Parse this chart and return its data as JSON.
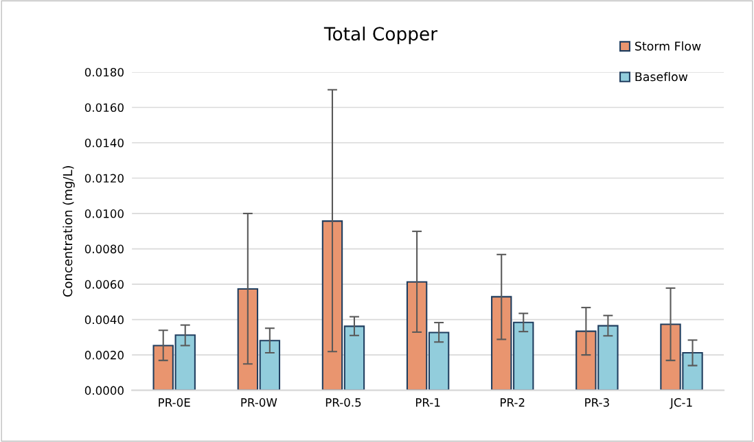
{
  "chart_data": {
    "type": "bar",
    "title": "Total Copper",
    "ylabel": "Concentration (mg/L)",
    "categories": [
      "PR-0E",
      "PR-0W",
      "PR-0.5",
      "PR-1",
      "PR-2",
      "PR-3",
      "JC-1"
    ],
    "series": [
      {
        "name": "Storm Flow",
        "color": "#e9956f",
        "values": [
          0.00253,
          0.00573,
          0.00957,
          0.00613,
          0.00529,
          0.00334,
          0.00373
        ],
        "errors": [
          [
            0.00169,
            0.00339
          ],
          [
            0.00149,
            0.01
          ],
          [
            0.00219,
            0.017
          ],
          [
            0.00329,
            0.00899
          ],
          [
            0.00288,
            0.00768
          ],
          [
            0.002,
            0.00468
          ],
          [
            0.00169,
            0.00578
          ]
        ]
      },
      {
        "name": "Baseflow",
        "color": "#92cddc",
        "values": [
          0.00312,
          0.00281,
          0.00362,
          0.00327,
          0.00384,
          0.00365,
          0.00212
        ],
        "errors": [
          [
            0.00253,
            0.00369
          ],
          [
            0.00212,
            0.00351
          ],
          [
            0.0031,
            0.00416
          ],
          [
            0.00273,
            0.00383
          ],
          [
            0.00332,
            0.00435
          ],
          [
            0.00308,
            0.00423
          ],
          [
            0.0014,
            0.00284
          ]
        ]
      }
    ],
    "ylim": [
      0,
      0.018
    ],
    "yticks": [
      {
        "value": 0,
        "label": "0.0000"
      },
      {
        "value": 0.002,
        "label": "0.0020"
      },
      {
        "value": 0.004,
        "label": "0.0040"
      },
      {
        "value": 0.006,
        "label": "0.0060"
      },
      {
        "value": 0.008,
        "label": "0.0080"
      },
      {
        "value": 0.01,
        "label": "0.0100"
      },
      {
        "value": 0.012,
        "label": "0.0120"
      },
      {
        "value": 0.014,
        "label": "0.0140"
      },
      {
        "value": 0.016,
        "label": "0.0160"
      },
      {
        "value": 0.018,
        "label": "0.0180"
      }
    ],
    "grid": "y",
    "legend": "top right"
  }
}
